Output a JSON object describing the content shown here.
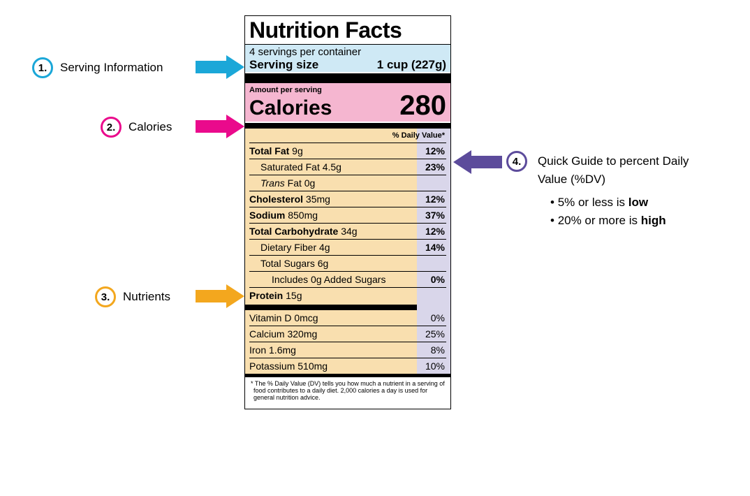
{
  "colors": {
    "c1": "#1ba7d8",
    "c2": "#ea0a8c",
    "c3": "#f3a71e",
    "c4": "#5c4b9b",
    "serving_bg": "#cfe9f5",
    "calorie_bg": "#f5b6d0",
    "nutrient_bg": "#f9dfaf",
    "dv_bg": "#d9d6ea"
  },
  "callouts": {
    "serving": {
      "num": "1.",
      "label": "Serving Information"
    },
    "calories": {
      "num": "2.",
      "label": "Calories"
    },
    "nutrients": {
      "num": "3.",
      "label": "Nutrients"
    },
    "dv": {
      "num": "4.",
      "label": "Quick Guide to percent Daily Value (%DV)",
      "bullets": [
        {
          "pre": "5% or less is ",
          "bold": "low"
        },
        {
          "pre": "20% or more is ",
          "bold": "high"
        }
      ]
    }
  },
  "label": {
    "title": "Nutrition Facts",
    "servings_per_container": "4 servings per container",
    "serving_size_label": "Serving size",
    "serving_size_value": "1 cup (227g)",
    "amount_per_serving": "Amount per serving",
    "calories_label": "Calories",
    "calories_value": "280",
    "dv_header": "% Daily Value*",
    "nutrients": [
      {
        "name": "Total Fat",
        "amt": "9g",
        "dv": "12%",
        "bold": true,
        "indent": 0
      },
      {
        "name": "Saturated Fat",
        "amt": "4.5g",
        "dv": "23%",
        "bold": false,
        "indent": 1
      },
      {
        "name": "Trans Fat",
        "amt": "0g",
        "dv": "",
        "bold": false,
        "indent": 1,
        "italic_first": true
      },
      {
        "name": "Cholesterol",
        "amt": "35mg",
        "dv": "12%",
        "bold": true,
        "indent": 0
      },
      {
        "name": "Sodium",
        "amt": "850mg",
        "dv": "37%",
        "bold": true,
        "indent": 0
      },
      {
        "name": "Total Carbohydrate",
        "amt": "34g",
        "dv": "12%",
        "bold": true,
        "indent": 0
      },
      {
        "name": "Dietary Fiber",
        "amt": "4g",
        "dv": "14%",
        "bold": false,
        "indent": 1
      },
      {
        "name": "Total Sugars",
        "amt": "6g",
        "dv": "",
        "bold": false,
        "indent": 1
      },
      {
        "name": "Includes 0g Added Sugars",
        "amt": "",
        "dv": "0%",
        "bold": false,
        "indent": 2
      },
      {
        "name": "Protein",
        "amt": "15g",
        "dv": "",
        "bold": true,
        "indent": 0,
        "no_border": true
      }
    ],
    "vitamins": [
      {
        "name": "Vitamin D",
        "amt": "0mcg",
        "dv": "0%"
      },
      {
        "name": "Calcium",
        "amt": "320mg",
        "dv": "25%"
      },
      {
        "name": "Iron",
        "amt": "1.6mg",
        "dv": "8%"
      },
      {
        "name": "Potassium",
        "amt": "510mg",
        "dv": "10%"
      }
    ],
    "footnote": "* The % Daily Value (DV) tells you how much a nutrient in a serving of food contributes to a daily diet. 2,000 calories a day is used for general nutrition advice."
  }
}
